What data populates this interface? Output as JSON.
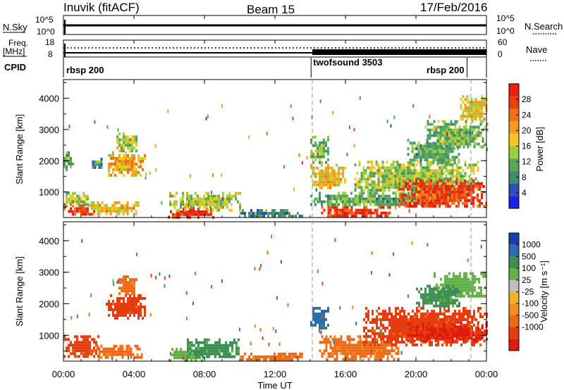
{
  "header": {
    "station": "Inuvik (fitACF)",
    "beam": "Beam 15",
    "date": "17/Feb/2016"
  },
  "panels": {
    "nsky": {
      "left_label": "N.Sky",
      "right_label": "N.Search",
      "left_ticks": [
        "10^5",
        "10^0"
      ],
      "right_ticks": [
        "10^5",
        "10^0"
      ]
    },
    "freq": {
      "left_label_top": "Freq.",
      "left_label_unit": "[MHz]",
      "left_ticks": [
        "18",
        "8"
      ],
      "right_label": "Nave",
      "right_ticks": [
        "60",
        "0"
      ]
    },
    "cpid": {
      "label": "CPID",
      "segments": [
        {
          "name": "rbsp 200",
          "start": 0.0
        },
        {
          "name": "twofsound 3503",
          "start": 14.05
        },
        {
          "name": "rbsp 200",
          "start": 22.9
        }
      ]
    }
  },
  "colors": {
    "power": [
      "#1a22e6",
      "#2b4fb4",
      "#3f8f6e",
      "#56a859",
      "#9ccd3d",
      "#f2c81f",
      "#f79a1c",
      "#f26f1a",
      "#ea3d12",
      "#e81e10"
    ],
    "velocity": [
      "#1b3fa8",
      "#2c6bb0",
      "#3c8f52",
      "#63b048",
      "#bfbfbf",
      "#f1b322",
      "#f08e1e",
      "#ee6a17",
      "#e73c10",
      "#e01a0c"
    ]
  },
  "chart_data": [
    {
      "type": "heatmap",
      "name": "Power",
      "xlabel": "",
      "ylabel": "Slant Range [km]",
      "xlim": [
        0,
        24
      ],
      "ylim": [
        180,
        4600
      ],
      "yticks": [
        1000,
        2000,
        3000,
        4000
      ],
      "colorbar": {
        "label": "Power [dB]",
        "ticks": [
          4,
          8,
          12,
          16,
          20,
          24,
          28
        ],
        "range": [
          0,
          32
        ]
      },
      "regions": [
        {
          "t0": 0.0,
          "t1": 1.8,
          "r0": 250,
          "r1": 600,
          "value": 27
        },
        {
          "t0": 0.0,
          "t1": 1.4,
          "r0": 600,
          "r1": 1000,
          "value": 14
        },
        {
          "t0": 1.3,
          "t1": 4.3,
          "r0": 300,
          "r1": 700,
          "value": 18
        },
        {
          "t0": 2.4,
          "t1": 4.6,
          "r0": 1500,
          "r1": 2300,
          "value": 20
        },
        {
          "t0": 3.0,
          "t1": 4.2,
          "r0": 2300,
          "r1": 2900,
          "value": 14
        },
        {
          "t0": 0.0,
          "t1": 0.5,
          "r0": 1700,
          "r1": 2300,
          "value": 12
        },
        {
          "t0": 1.5,
          "t1": 2.2,
          "r0": 1800,
          "r1": 2100,
          "value": 10
        },
        {
          "t0": 5.8,
          "t1": 8.5,
          "r0": 220,
          "r1": 500,
          "value": 30
        },
        {
          "t0": 6.0,
          "t1": 10.0,
          "r0": 450,
          "r1": 1000,
          "value": 15
        },
        {
          "t0": 10.0,
          "t1": 13.5,
          "r0": 220,
          "r1": 450,
          "value": 9
        },
        {
          "t0": 14.0,
          "t1": 16.0,
          "r0": 1100,
          "r1": 1900,
          "value": 18
        },
        {
          "t0": 14.0,
          "t1": 15.0,
          "r0": 1900,
          "r1": 2800,
          "value": 12
        },
        {
          "t0": 14.5,
          "t1": 18.5,
          "r0": 220,
          "r1": 550,
          "value": 29
        },
        {
          "t0": 14.0,
          "t1": 21.0,
          "r0": 550,
          "r1": 1000,
          "value": 11
        },
        {
          "t0": 16.5,
          "t1": 23.5,
          "r0": 1000,
          "r1": 2000,
          "value": 14
        },
        {
          "t0": 19.0,
          "t1": 24.0,
          "r0": 500,
          "r1": 1400,
          "value": 27
        },
        {
          "t0": 19.5,
          "t1": 22.5,
          "r0": 1900,
          "r1": 2700,
          "value": 11
        },
        {
          "t0": 20.5,
          "t1": 24.0,
          "r0": 2400,
          "r1": 3300,
          "value": 12
        },
        {
          "t0": 22.5,
          "t1": 24.0,
          "r0": 3300,
          "r1": 4100,
          "value": 18
        }
      ]
    },
    {
      "type": "heatmap",
      "name": "Velocity",
      "xlabel": "Time UT",
      "ylabel": "Slant Range [km]",
      "xlim": [
        0,
        24
      ],
      "ylim": [
        180,
        4600
      ],
      "xticks": [
        "00:00",
        "04:00",
        "08:00",
        "12:00",
        "16:00",
        "20:00",
        "00:00"
      ],
      "yticks": [
        1000,
        2000,
        3000,
        4000
      ],
      "colorbar": {
        "label": "Velocity [m s⁻¹]",
        "ticks": [
          "1000",
          "500",
          "100",
          "25",
          "-25",
          "-100",
          "-500",
          "-1000"
        ]
      },
      "regions": [
        {
          "t0": 0.0,
          "t1": 2.0,
          "r0": 300,
          "r1": 1000,
          "value": -500
        },
        {
          "t0": 1.5,
          "t1": 4.5,
          "r0": 300,
          "r1": 700,
          "value": -100
        },
        {
          "t0": 2.4,
          "t1": 4.6,
          "r0": 1500,
          "r1": 2300,
          "value": -500
        },
        {
          "t0": 3.0,
          "t1": 4.2,
          "r0": 2300,
          "r1": 2900,
          "value": -100
        },
        {
          "t0": 6.0,
          "t1": 8.0,
          "r0": 220,
          "r1": 600,
          "value": 25
        },
        {
          "t0": 7.0,
          "t1": 10.0,
          "r0": 300,
          "r1": 900,
          "value": 100
        },
        {
          "t0": 10.0,
          "t1": 13.5,
          "r0": 220,
          "r1": 450,
          "value": -100
        },
        {
          "t0": 14.0,
          "t1": 15.0,
          "r0": 1200,
          "r1": 1900,
          "value": 500
        },
        {
          "t0": 14.5,
          "t1": 19.0,
          "r0": 220,
          "r1": 1000,
          "value": -100
        },
        {
          "t0": 17.0,
          "t1": 24.0,
          "r0": 700,
          "r1": 1900,
          "value": -500
        },
        {
          "t0": 19.5,
          "t1": 24.0,
          "r0": 800,
          "r1": 1400,
          "value": -1000
        },
        {
          "t0": 21.0,
          "t1": 24.0,
          "r0": 2200,
          "r1": 3000,
          "value": 25
        },
        {
          "t0": 20.0,
          "t1": 22.5,
          "r0": 1900,
          "r1": 2600,
          "value": 100
        }
      ]
    }
  ]
}
